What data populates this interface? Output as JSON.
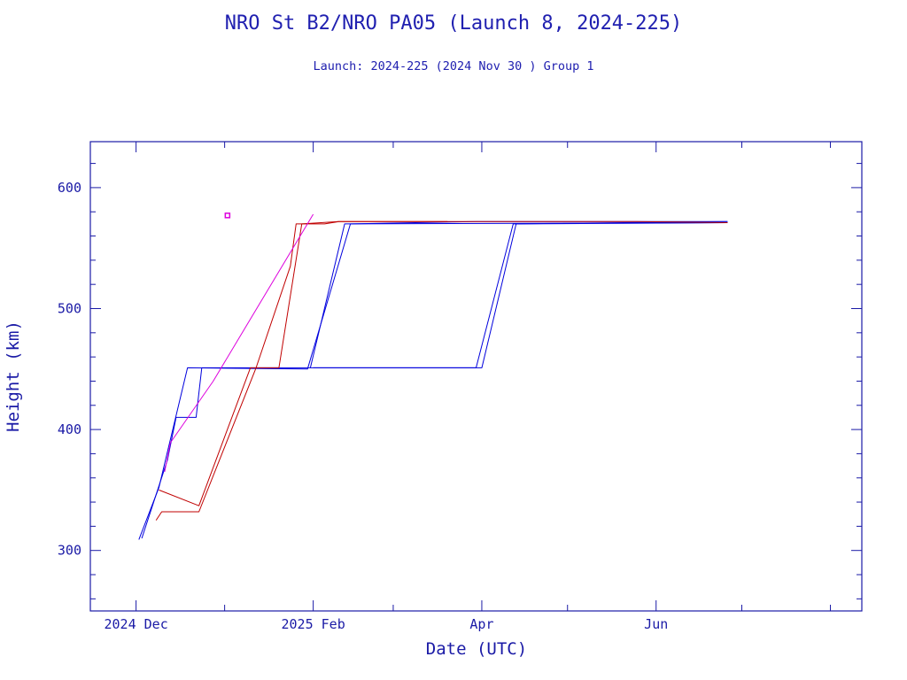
{
  "header": {
    "title": "NRO St B2/NRO PA05 (Launch 8, 2024-225)",
    "subtitle": "Launch: 2024-225  (2024 Nov 30 )  Group 1"
  },
  "chart_data": {
    "type": "line",
    "title": "NRO St B2/NRO PA05 (Launch 8, 2024-225)",
    "subtitle": "Launch: 2024-225  (2024 Nov 30 )  Group 1",
    "xlabel": "Date (UTC)",
    "ylabel": "Height (km)",
    "xlim": [
      "2024-11-15",
      "2025-08-12"
    ],
    "ylim": [
      250,
      638
    ],
    "x_ticks": [
      {
        "label": "2024 Dec",
        "x": "2024-12-01"
      },
      {
        "label": "2025 Feb",
        "x": "2025-02-01"
      },
      {
        "label": "Apr",
        "x": "2025-04-01"
      },
      {
        "label": "Jun",
        "x": "2025-06-01"
      }
    ],
    "y_ticks": [
      300,
      400,
      500,
      600
    ],
    "colors": {
      "axis": "#1a1aa6",
      "blue_series": "#0000dd",
      "red_series": "#c00000",
      "magenta_series": "#dd00dd"
    },
    "series": [
      {
        "color": "#0000dd",
        "points": [
          [
            "2024-12-02",
            309
          ],
          [
            "2024-12-09",
            352
          ],
          [
            "2024-12-19",
            451
          ],
          [
            "2025-01-30",
            450
          ],
          [
            "2025-02-14",
            570
          ],
          [
            "2025-03-30",
            572
          ],
          [
            "2025-06-26",
            572
          ]
        ]
      },
      {
        "color": "#0000dd",
        "points": [
          [
            "2024-12-03",
            310
          ],
          [
            "2024-12-12",
            375
          ],
          [
            "2024-12-15",
            410
          ],
          [
            "2024-12-22",
            410
          ],
          [
            "2024-12-24",
            451
          ],
          [
            "2025-01-31",
            451
          ],
          [
            "2025-02-12",
            570
          ],
          [
            "2025-06-26",
            571
          ]
        ]
      },
      {
        "color": "#0000dd",
        "points": [
          [
            "2025-01-31",
            451
          ],
          [
            "2025-03-30",
            451
          ],
          [
            "2025-04-12",
            570
          ],
          [
            "2025-06-26",
            572
          ]
        ]
      },
      {
        "color": "#0000dd",
        "points": [
          [
            "2025-02-01",
            451
          ],
          [
            "2025-04-01",
            451
          ],
          [
            "2025-04-13",
            570
          ],
          [
            "2025-06-26",
            571
          ]
        ]
      },
      {
        "color": "#c00000",
        "points": [
          [
            "2024-12-09",
            350
          ],
          [
            "2024-12-23",
            337
          ],
          [
            "2025-01-10",
            451
          ],
          [
            "2025-01-20",
            451
          ],
          [
            "2025-01-28",
            570
          ],
          [
            "2025-02-10",
            572
          ],
          [
            "2025-03-20",
            572
          ],
          [
            "2025-05-25",
            572
          ],
          [
            "2025-06-26",
            571
          ]
        ]
      },
      {
        "color": "#c00000",
        "points": [
          [
            "2024-12-08",
            325
          ],
          [
            "2024-12-10",
            332
          ],
          [
            "2024-12-23",
            332
          ],
          [
            "2025-01-12",
            451
          ],
          [
            "2025-01-24",
            535
          ],
          [
            "2025-01-26",
            570
          ],
          [
            "2025-02-05",
            570
          ],
          [
            "2025-02-10",
            572
          ],
          [
            "2025-03-20",
            572
          ]
        ]
      },
      {
        "color": "#dd00dd",
        "points": [
          [
            "2024-12-11",
            365
          ],
          [
            "2024-12-13",
            389
          ],
          [
            "2024-12-28",
            440
          ],
          [
            "2025-02-01",
            578
          ]
        ]
      },
      {
        "color": "#dd00dd",
        "points": [
          [
            "2025-01-02",
            577
          ]
        ]
      }
    ]
  }
}
